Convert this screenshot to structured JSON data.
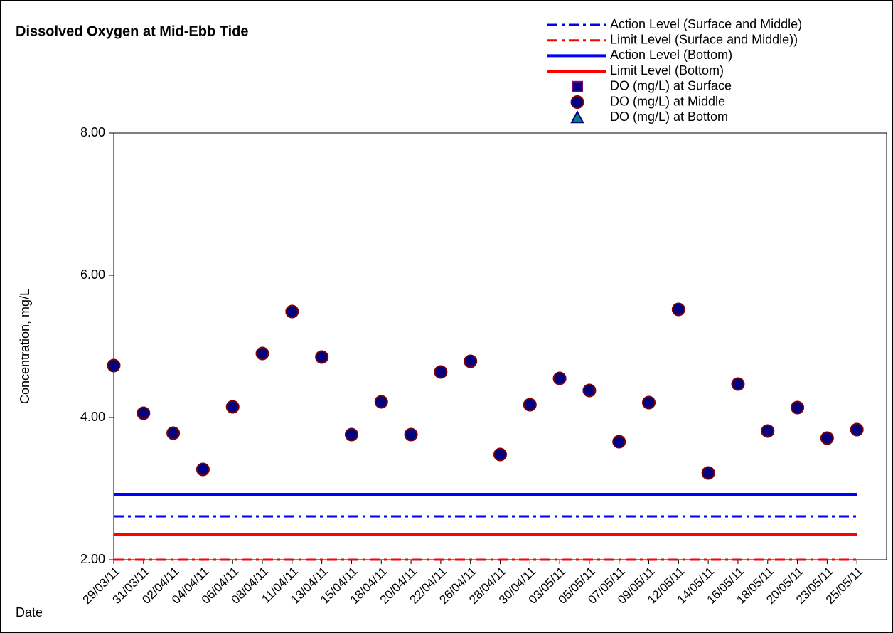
{
  "chart_data": {
    "type": "scatter",
    "title": "Dissolved Oxygen at Mid-Ebb Tide",
    "y_label": "Concentration, mg/L",
    "x_label": "Date",
    "categories": [
      "29/03/11",
      "31/03/11",
      "02/04/11",
      "04/04/11",
      "06/04/11",
      "08/04/11",
      "11/04/11",
      "13/04/11",
      "15/04/11",
      "18/04/11",
      "20/04/11",
      "22/04/11",
      "26/04/11",
      "28/04/11",
      "30/04/11",
      "03/05/11",
      "05/05/11",
      "07/05/11",
      "09/05/11",
      "12/05/11",
      "14/05/11",
      "16/05/11",
      "18/05/11",
      "20/05/11",
      "23/05/11",
      "25/05/11"
    ],
    "ylim": [
      2,
      8
    ],
    "yticks": [
      {
        "value": 2,
        "label": "2.00"
      },
      {
        "value": 4,
        "label": "4.00"
      },
      {
        "value": 6,
        "label": "6.00"
      },
      {
        "value": 8,
        "label": "8.00"
      }
    ],
    "reference_lines": [
      {
        "name": "Action Level (Surface and Middle)",
        "color": "#0000ff",
        "style": "dashdot",
        "value": 2.61
      },
      {
        "name": "Limit Level (Surface and Middle))",
        "color": "#ff0000",
        "style": "dashdot",
        "value": 2.0
      },
      {
        "name": "Action Level (Bottom)",
        "color": "#0000ff",
        "style": "solid",
        "value": 2.92
      },
      {
        "name": "Limit Level (Bottom)",
        "color": "#ff0000",
        "style": "solid",
        "value": 2.35
      }
    ],
    "series": [
      {
        "name": "DO (mg/L) at Surface",
        "marker": "square",
        "color": "#000080",
        "edge": "#800080",
        "values": [
          null,
          null,
          null,
          null,
          null,
          null,
          null,
          null,
          null,
          null,
          null,
          null,
          null,
          null,
          null,
          null,
          null,
          null,
          null,
          null,
          null,
          null,
          null,
          null,
          null,
          null
        ]
      },
      {
        "name": "DO (mg/L) at Middle",
        "marker": "circle",
        "color": "#000080",
        "edge": "#800000",
        "values": [
          4.73,
          4.06,
          3.78,
          3.27,
          4.15,
          4.9,
          5.49,
          4.85,
          3.76,
          4.22,
          3.76,
          4.64,
          4.79,
          3.48,
          4.18,
          4.55,
          4.38,
          3.66,
          4.21,
          5.52,
          3.22,
          4.47,
          3.81,
          4.14,
          3.71,
          3.83
        ]
      },
      {
        "name": "DO (mg/L) at Bottom",
        "marker": "triangle",
        "color": "#008080",
        "edge": "#000080",
        "values": [
          null,
          null,
          null,
          null,
          null,
          null,
          null,
          null,
          null,
          null,
          null,
          null,
          null,
          null,
          null,
          null,
          null,
          null,
          null,
          null,
          null,
          null,
          null,
          null,
          null,
          null
        ]
      }
    ],
    "legend": "upper right"
  }
}
